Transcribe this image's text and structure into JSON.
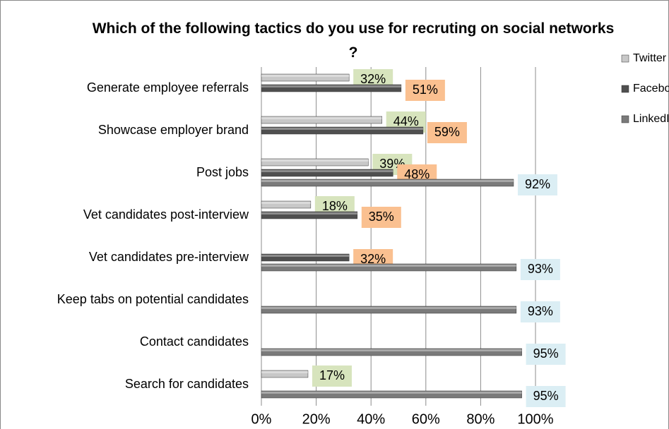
{
  "chart_data": {
    "type": "bar",
    "orientation": "horizontal",
    "title": "Which of the following tactics do you use for recruting on social networks ?",
    "categories": [
      "Generate employee referrals",
      "Showcase employer brand",
      "Post jobs",
      "Vet candidates post-interview",
      "Vet candidates pre-interview",
      "Keep tabs on potential candidates",
      "Contact candidates",
      "Search for candidates"
    ],
    "series": [
      {
        "name": "Twitter",
        "color": "#c8c8c8",
        "label_color": "#d7e4bd",
        "values": [
          32,
          44,
          39,
          18,
          null,
          null,
          null,
          17
        ],
        "value_labels": [
          "32%",
          "44%",
          "39%",
          "18%",
          null,
          null,
          null,
          "17%"
        ]
      },
      {
        "name": "Facebook",
        "color": "#4f4f4f",
        "label_color": "#fac090",
        "values": [
          51,
          59,
          48,
          35,
          32,
          null,
          null,
          null
        ],
        "value_labels": [
          "51%",
          "59%",
          "48%",
          "35%",
          "32%",
          null,
          null,
          null
        ]
      },
      {
        "name": "LinkedIn",
        "color": "#7a7a7a",
        "label_color": "#dbeef4",
        "values": [
          null,
          null,
          92,
          null,
          93,
          93,
          95,
          95
        ],
        "value_labels": [
          null,
          null,
          "92%",
          null,
          "93%",
          "93%",
          "95%",
          "95%"
        ]
      }
    ],
    "xlim": [
      0,
      100
    ],
    "xticks": [
      {
        "value": 0,
        "label": "0%"
      },
      {
        "value": 20,
        "label": "20%"
      },
      {
        "value": 40,
        "label": "40%"
      },
      {
        "value": 60,
        "label": "60%"
      },
      {
        "value": 80,
        "label": "80%"
      },
      {
        "value": 100,
        "label": "100%"
      }
    ],
    "grid": true,
    "legend": "right"
  }
}
